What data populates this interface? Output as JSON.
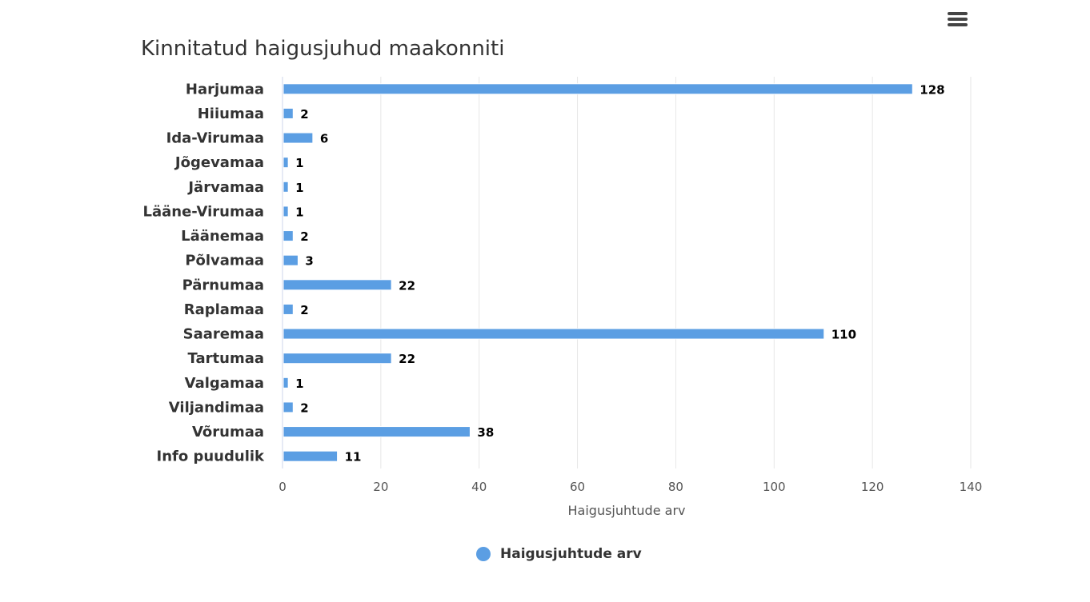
{
  "chart_data": {
    "type": "bar",
    "orientation": "horizontal",
    "title": "Kinnitatud haigusjuhud maakonniti",
    "categories": [
      "Harjumaa",
      "Hiiumaa",
      "Ida-Virumaa",
      "Jõgevamaa",
      "Järvamaa",
      "Lääne-Virumaa",
      "Läänemaa",
      "Põlvamaa",
      "Pärnumaa",
      "Raplamaa",
      "Saaremaa",
      "Tartumaa",
      "Valgamaa",
      "Viljandimaa",
      "Võrumaa",
      "Info puudulik"
    ],
    "series": [
      {
        "name": "Haigusjuhtude arv",
        "values": [
          128,
          2,
          6,
          1,
          1,
          1,
          2,
          3,
          22,
          2,
          110,
          22,
          1,
          2,
          38,
          11
        ]
      }
    ],
    "xlabel": "Haigusjuhtude arv",
    "ylabel": "",
    "xlim": [
      0,
      140
    ],
    "xticks": [
      0,
      20,
      40,
      60,
      80,
      100,
      120,
      140
    ],
    "grid": true,
    "data_labels": true,
    "legend_position": "bottom",
    "bar_color": "#5b9ee3"
  },
  "menu": {
    "icon": "hamburger-menu-icon"
  }
}
